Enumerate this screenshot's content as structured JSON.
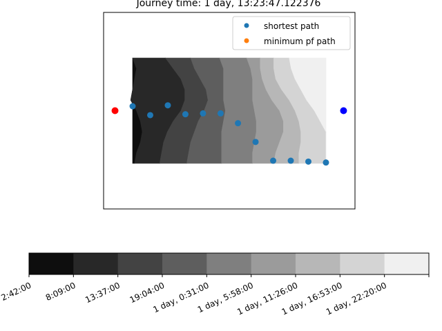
{
  "chart_data": {
    "type": "scatter",
    "title": "Journey time: 1 day, 13:23:47.122376",
    "xlabel": "",
    "ylabel": "",
    "xlim": [
      -0.05,
      1.05
    ],
    "ylim": [
      -0.05,
      1.05
    ],
    "grid": false,
    "axis_ticks_visible": false,
    "legend": {
      "placement": "top-right",
      "entries": [
        "shortest path",
        "minimum pf path"
      ]
    },
    "colors": {
      "shortest_path": "#1f77b4",
      "minimum_pf_path": "#ff7f0e",
      "start_marker": "#ff0000",
      "end_marker": "#0000ff"
    },
    "start_point": {
      "x": 0.0,
      "y": 0.5
    },
    "end_point": {
      "x": 1.0,
      "y": 0.5
    },
    "series": [
      {
        "name": "shortest path",
        "color": "#1f77b4",
        "x": [
          0.077,
          0.154,
          0.231,
          0.308,
          0.385,
          0.462,
          0.538,
          0.615,
          0.692,
          0.769,
          0.846,
          0.923
        ],
        "y": [
          0.525,
          0.475,
          0.53,
          0.48,
          0.485,
          0.485,
          0.43,
          0.325,
          0.22,
          0.22,
          0.215,
          0.21
        ]
      },
      {
        "name": "minimum pf path",
        "color": "#ff7f0e",
        "x": [],
        "y": []
      }
    ],
    "contour": {
      "extent": {
        "x": [
          0.077,
          0.923
        ],
        "y": [
          0.205,
          0.795
        ]
      },
      "level_colors": [
        "#0e0e0e",
        "#282828",
        "#434343",
        "#5e5e5e",
        "#7f7f7f",
        "#9b9b9b",
        "#b7b7b7",
        "#d4d4d4",
        "#f0f0f0"
      ],
      "bands": [
        [
          0.0,
          0.02,
          0.01,
          0.0,
          -0.01,
          0.02,
          0.04,
          0.05,
          0.04,
          0.02,
          0.01
        ],
        [
          0.17,
          0.21,
          0.25,
          0.27,
          0.27,
          0.25,
          0.21,
          0.18,
          0.16,
          0.15,
          0.14
        ],
        [
          0.3,
          0.32,
          0.35,
          0.38,
          0.39,
          0.37,
          0.34,
          0.32,
          0.3,
          0.29,
          0.28
        ],
        [
          0.45,
          0.47,
          0.47,
          0.47,
          0.47,
          0.48,
          0.47,
          0.46,
          0.46,
          0.46,
          0.46
        ],
        [
          0.59,
          0.61,
          0.62,
          0.62,
          0.62,
          0.63,
          0.64,
          0.64,
          0.63,
          0.62,
          0.62
        ],
        [
          0.66,
          0.66,
          0.67,
          0.69,
          0.72,
          0.76,
          0.78,
          0.78,
          0.76,
          0.74,
          0.73
        ],
        [
          0.73,
          0.73,
          0.74,
          0.77,
          0.81,
          0.84,
          0.86,
          0.87,
          0.87,
          0.86,
          0.86
        ],
        [
          0.81,
          0.82,
          0.84,
          0.87,
          0.9,
          0.94,
          0.97,
          1.0,
          1.0,
          1.0,
          1.0
        ]
      ]
    },
    "colorbar": {
      "colors": [
        "#0e0e0e",
        "#282828",
        "#434343",
        "#5e5e5e",
        "#7f7f7f",
        "#9b9b9b",
        "#b7b7b7",
        "#d4d4d4",
        "#f0f0f0"
      ],
      "tick_labels": [
        "2:42:00",
        "8:09:00",
        "13:37:00",
        "19:04:00",
        "1 day, 0:31:00",
        "1 day, 5:58:00",
        "1 day, 11:26:00",
        "1 day, 16:53:00",
        "1 day, 22:20:00"
      ]
    }
  }
}
